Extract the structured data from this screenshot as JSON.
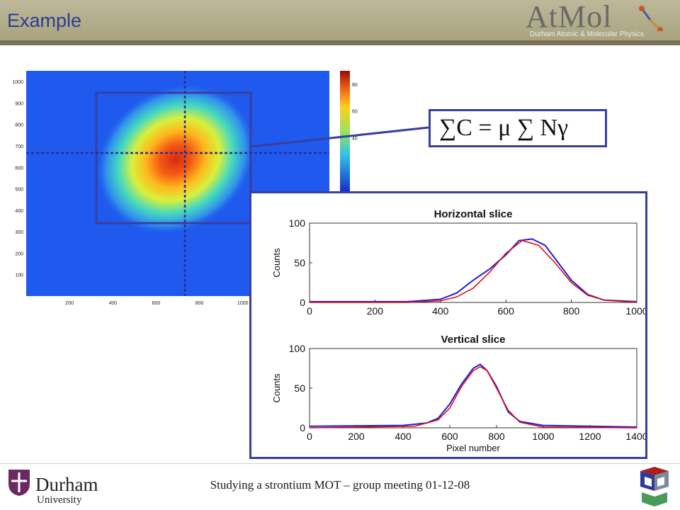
{
  "slide": {
    "title": "Example",
    "footer": "Studying a strontium MOT – group meeting 01-12-08"
  },
  "logo_atmol": {
    "name": "AtMol",
    "subtitle": "Durham Atomic & Molecular Physics"
  },
  "logo_durham": {
    "name": "Durham",
    "subname": "University"
  },
  "equation": "∑C = μ ∑ Nγ",
  "colors": {
    "title": "#2d3d92",
    "header": "#b3ae8c",
    "box_border": "#3a3f9e",
    "data_line": "#1f1fd6",
    "fit_line": "#e01010"
  },
  "chart_data": [
    {
      "type": "heatmap",
      "x_ticks": [
        "200",
        "400",
        "600",
        "800",
        "1000"
      ],
      "y_ticks": [
        "100",
        "200",
        "300",
        "400",
        "500",
        "600",
        "700",
        "800",
        "900",
        "1000"
      ],
      "colorbar_ticks": [
        "40",
        "60",
        "80"
      ],
      "xlim": [
        0,
        1400
      ],
      "ylim": [
        0,
        1050
      ],
      "centre": [
        720,
        640
      ]
    },
    {
      "type": "line",
      "title": "Horizontal slice",
      "ylabel": "Counts",
      "xlabel": "",
      "xlim": [
        0,
        1000
      ],
      "ylim": [
        0,
        100
      ],
      "x_ticks": [
        "0",
        "200",
        "400",
        "600",
        "800",
        "1000"
      ],
      "y_ticks": [
        "0",
        "50",
        "100"
      ],
      "series": [
        {
          "x": [
            0,
            300,
            400,
            450,
            500,
            550,
            600,
            640,
            680,
            720,
            760,
            800,
            850,
            900,
            1000
          ],
          "y": [
            1,
            1,
            4,
            12,
            28,
            42,
            60,
            78,
            80,
            72,
            50,
            28,
            10,
            3,
            1
          ]
        },
        {
          "x": [
            0,
            300,
            400,
            450,
            500,
            550,
            600,
            650,
            700,
            750,
            800,
            850,
            900,
            1000
          ],
          "y": [
            0,
            0,
            2,
            7,
            18,
            38,
            62,
            78,
            72,
            50,
            25,
            9,
            3,
            0
          ]
        }
      ]
    },
    {
      "type": "line",
      "title": "Vertical slice",
      "ylabel": "Counts",
      "xlabel": "Pixel number",
      "xlim": [
        0,
        1400
      ],
      "ylim": [
        0,
        100
      ],
      "x_ticks": [
        "0",
        "200",
        "400",
        "600",
        "800",
        "1000",
        "1200",
        "1400"
      ],
      "y_ticks": [
        "0",
        "50",
        "100"
      ],
      "series": [
        {
          "x": [
            0,
            400,
            500,
            550,
            600,
            650,
            700,
            730,
            760,
            800,
            850,
            900,
            1000,
            1400
          ],
          "y": [
            2,
            3,
            6,
            12,
            30,
            55,
            75,
            80,
            72,
            52,
            20,
            8,
            3,
            1
          ]
        },
        {
          "x": [
            0,
            450,
            550,
            600,
            650,
            700,
            730,
            760,
            800,
            850,
            900,
            1000,
            1400
          ],
          "y": [
            0,
            2,
            10,
            25,
            52,
            72,
            77,
            72,
            50,
            22,
            7,
            1,
            0
          ]
        }
      ]
    }
  ]
}
